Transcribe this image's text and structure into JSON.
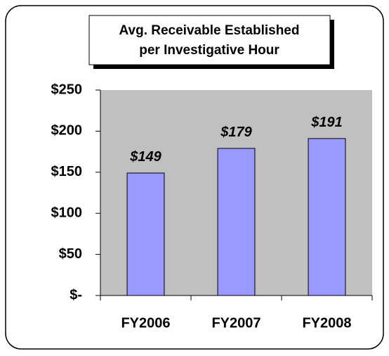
{
  "chart_data": {
    "type": "bar",
    "title": [
      "Avg. Receivable Established",
      "per Investigative Hour"
    ],
    "categories": [
      "FY2006",
      "FY2007",
      "FY2008"
    ],
    "values": [
      149,
      179,
      191
    ],
    "value_labels": [
      "$149",
      "$179",
      "$191"
    ],
    "color": "#9999ff",
    "ylim": [
      0,
      250
    ],
    "yticks": [
      {
        "value": 0,
        "label": "$-"
      },
      {
        "value": 50,
        "label": "$50"
      },
      {
        "value": 100,
        "label": "$100"
      },
      {
        "value": 150,
        "label": "$150"
      },
      {
        "value": 200,
        "label": "$200"
      },
      {
        "value": 250,
        "label": "$250"
      }
    ],
    "grid": false
  }
}
